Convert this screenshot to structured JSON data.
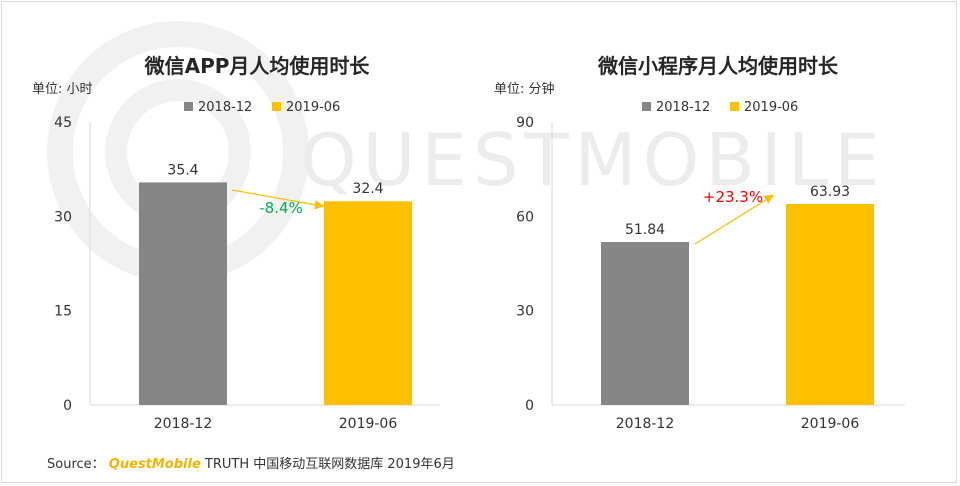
{
  "watermark": "QUESTMOBILE",
  "source": {
    "label": "Source：",
    "brand": "QuestMobile",
    "text": "TRUTH 中国移动互联网数据库 2019年6月"
  },
  "colors": {
    "series1": "#868686",
    "series2": "#ffc000",
    "arrow": "#ffc000",
    "negative": "#00b050",
    "positive": "#ff0000"
  },
  "chart_data": [
    {
      "type": "bar",
      "title": "微信APP月人均使用时长",
      "unit_label": "单位: 小时",
      "categories": [
        "2018-12",
        "2019-06"
      ],
      "values": [
        35.4,
        32.4
      ],
      "value_labels": [
        "35.4",
        "32.4"
      ],
      "legend": [
        "2018-12",
        "2019-06"
      ],
      "ylim": [
        0,
        45
      ],
      "yticks": [
        0,
        15,
        30,
        45
      ],
      "change_label": "-8.4%",
      "change_sign": "negative"
    },
    {
      "type": "bar",
      "title": "微信小程序月人均使用时长",
      "unit_label": "单位: 分钟",
      "categories": [
        "2018-12",
        "2019-06"
      ],
      "values": [
        51.84,
        63.93
      ],
      "value_labels": [
        "51.84",
        "63.93"
      ],
      "legend": [
        "2018-12",
        "2019-06"
      ],
      "ylim": [
        0,
        90
      ],
      "yticks": [
        0,
        30,
        60,
        90
      ],
      "change_label": "+23.3%",
      "change_sign": "positive"
    }
  ]
}
